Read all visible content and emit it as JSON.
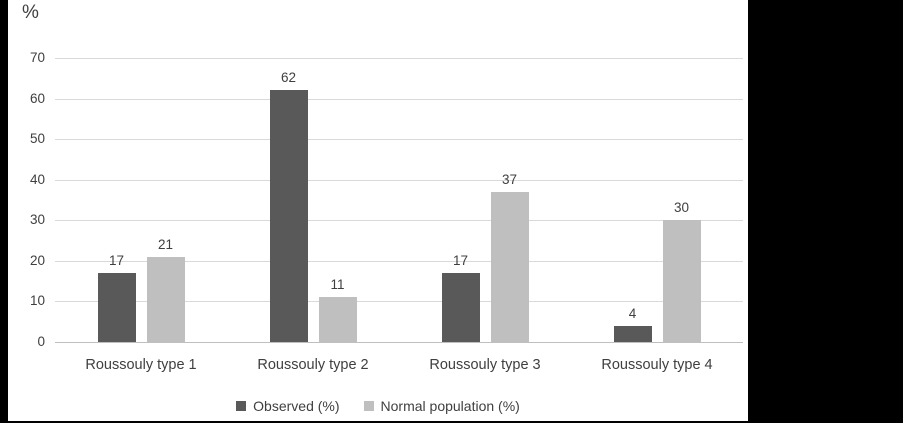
{
  "chart_data": {
    "type": "bar",
    "title": "",
    "ylabel": "%",
    "xlabel": "",
    "categories": [
      "Roussouly type 1",
      "Roussouly type 2",
      "Roussouly type 3",
      "Roussouly type 4"
    ],
    "series": [
      {
        "name": "Observed (%)",
        "color": "#595959",
        "values": [
          17,
          62,
          17,
          4
        ]
      },
      {
        "name": "Normal population (%)",
        "color": "#bfbfbf",
        "values": [
          21,
          11,
          37,
          30
        ]
      }
    ],
    "ylim": [
      0,
      70
    ],
    "yticks": [
      0,
      10,
      20,
      30,
      40,
      50,
      60,
      70
    ],
    "grid": true,
    "data_labels": true,
    "legend_position": "bottom"
  },
  "colors": {
    "page_background": "#000000",
    "panel_background": "#ffffff",
    "gridline": "#d9d9d9",
    "axis_line": "#bfbfbf",
    "text": "#3f3f3f"
  }
}
